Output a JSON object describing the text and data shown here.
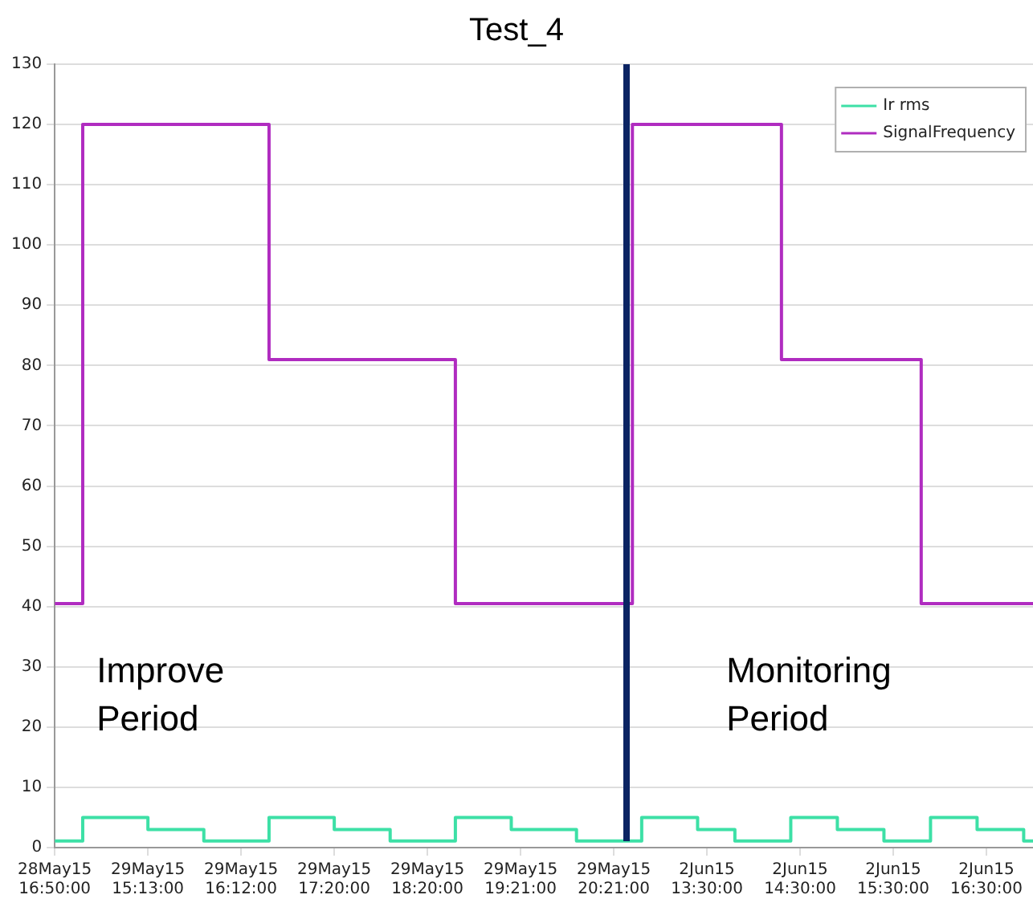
{
  "chart_data": {
    "type": "step",
    "title": "Test_4",
    "categories": [
      "28May15\n16:50:00",
      null,
      null,
      null,
      null,
      null,
      null,
      null,
      null,
      null,
      "29May15\n15:13:00",
      null,
      null,
      null,
      null,
      null,
      null,
      null,
      null,
      null,
      "29May15\n16:12:00",
      null,
      null,
      null,
      null,
      null,
      null,
      null,
      null,
      null,
      "29May15\n17:20:00",
      null,
      null,
      null,
      null,
      null,
      null,
      null,
      null,
      null,
      "29May15\n18:20:00",
      null,
      null,
      null,
      null,
      null,
      null,
      null,
      null,
      null,
      "29May15\n19:21:00",
      null,
      null,
      null,
      null,
      null,
      null,
      null,
      null,
      null,
      "29May15\n20:21:00",
      null,
      null,
      null,
      null,
      null,
      null,
      null,
      null,
      null,
      "2Jun15\n13:30:00",
      null,
      null,
      null,
      null,
      null,
      null,
      null,
      null,
      null,
      "2Jun15\n14:30:00",
      null,
      null,
      null,
      null,
      null,
      null,
      null,
      null,
      null,
      "2Jun15\n15:30:00",
      null,
      null,
      null,
      null,
      null,
      null,
      null,
      null,
      null,
      "2Jun15\n16:30:00",
      null,
      null,
      null,
      null,
      null
    ],
    "series": [
      {
        "name": "Ir rms",
        "color": "#3de0a6",
        "values": [
          1.1,
          1.1,
          1.1,
          5,
          5,
          5,
          5,
          5,
          5,
          5,
          3,
          3,
          3,
          3,
          3,
          3,
          1.1,
          1.1,
          1.1,
          1.1,
          1.1,
          1.1,
          1.1,
          5,
          5,
          5,
          5,
          5,
          5,
          5,
          3,
          3,
          3,
          3,
          3,
          3,
          1.1,
          1.1,
          1.1,
          1.1,
          1.1,
          1.1,
          1.1,
          5,
          5,
          5,
          5,
          5,
          5,
          3,
          3,
          3,
          3,
          3,
          3,
          3,
          1.1,
          1.1,
          1.1,
          1.1,
          1.1,
          1.1,
          1.1,
          5,
          5,
          5,
          5,
          5,
          5,
          3,
          3,
          3,
          3,
          1.1,
          1.1,
          1.1,
          1.1,
          1.1,
          1.1,
          5,
          5,
          5,
          5,
          5,
          3,
          3,
          3,
          3,
          3,
          1.1,
          1.1,
          1.1,
          1.1,
          1.1,
          5,
          5,
          5,
          5,
          5,
          3,
          3,
          3,
          3,
          3,
          1.1,
          1.1
        ]
      },
      {
        "name": "SignalFrequency",
        "color": "#b02cc0",
        "values": [
          40.5,
          40.5,
          40.5,
          120,
          120,
          120,
          120,
          120,
          120,
          120,
          120,
          120,
          120,
          120,
          120,
          120,
          120,
          120,
          120,
          120,
          120,
          120,
          120,
          81,
          81,
          81,
          81,
          81,
          81,
          81,
          81,
          81,
          81,
          81,
          81,
          81,
          81,
          81,
          81,
          81,
          81,
          81,
          81,
          40.5,
          40.5,
          40.5,
          40.5,
          40.5,
          40.5,
          40.5,
          40.5,
          40.5,
          40.5,
          40.5,
          40.5,
          40.5,
          40.5,
          40.5,
          40.5,
          40.5,
          40.5,
          40.5,
          120,
          120,
          120,
          120,
          120,
          120,
          120,
          120,
          120,
          120,
          120,
          120,
          120,
          120,
          120,
          120,
          81,
          81,
          81,
          81,
          81,
          81,
          81,
          81,
          81,
          81,
          81,
          81,
          81,
          81,
          81,
          40.5,
          40.5,
          40.5,
          40.5,
          40.5,
          40.5,
          40.5,
          40.5,
          40.5,
          40.5,
          40.5,
          40.5,
          40.5
        ]
      }
    ],
    "ylim": [
      0,
      130
    ],
    "yticks": [
      0,
      10,
      20,
      30,
      40,
      50,
      60,
      70,
      80,
      90,
      100,
      110,
      120,
      130
    ],
    "annotations": [
      "Improve\nPeriod",
      "Monitoring\nPeriod"
    ],
    "grid": "y",
    "legend": "top right",
    "line_style": "solid",
    "marker": "none"
  }
}
